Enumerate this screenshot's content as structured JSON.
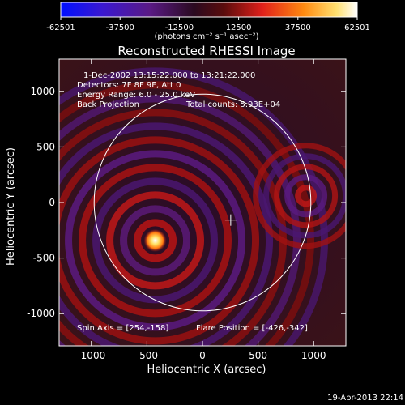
{
  "chart_data": {
    "type": "heatmap",
    "title": "Reconstructed RHESSI Image",
    "xlabel": "Heliocentric X (arcsec)",
    "ylabel": "Heliocentric Y (arcsec)",
    "xlim": [
      -1290,
      1290
    ],
    "ylim": [
      -1290,
      1290
    ],
    "xticks": [
      -1000,
      -500,
      0,
      500,
      1000
    ],
    "yticks": [
      -1000,
      -500,
      0,
      500,
      1000
    ],
    "colorbar": {
      "min": -62501,
      "max": 62501,
      "ticks": [
        -62501,
        -37500,
        -12500,
        12500,
        37500,
        62501
      ],
      "tick_labels": [
        "-62501",
        "-37500",
        "-12500",
        "12500",
        "37500",
        "62501"
      ],
      "units": "(photons cm⁻² s⁻¹ asec⁻²)",
      "colors": [
        "#0010ff",
        "#4a19b8",
        "#5a1a85",
        "#8a1a1a",
        "#e0201a",
        "#ff8a10",
        "#ffe070",
        "#ffffff"
      ]
    },
    "annotations": [
      "1-Dec-2002 13:15:22.000 to 13:21:22.000",
      "Detectors: 7F 8F 9F, Att 0",
      "Energy Range: 6.0 - 25.0 keV",
      "Back Projection",
      "Total counts: 5.93E+04",
      "Spin Axis = [254,-158]",
      "Flare Position = [-426,-342]"
    ],
    "solar_limb": {
      "center": [
        0,
        0
      ],
      "radius_arcsec": 975
    },
    "spin_axis": [
      254,
      -158
    ],
    "source": {
      "position": [
        -426,
        -342
      ],
      "label": "Flare Position"
    },
    "grid": false
  },
  "footer": {
    "timestamp": "19-Apr-2013 22:14"
  }
}
